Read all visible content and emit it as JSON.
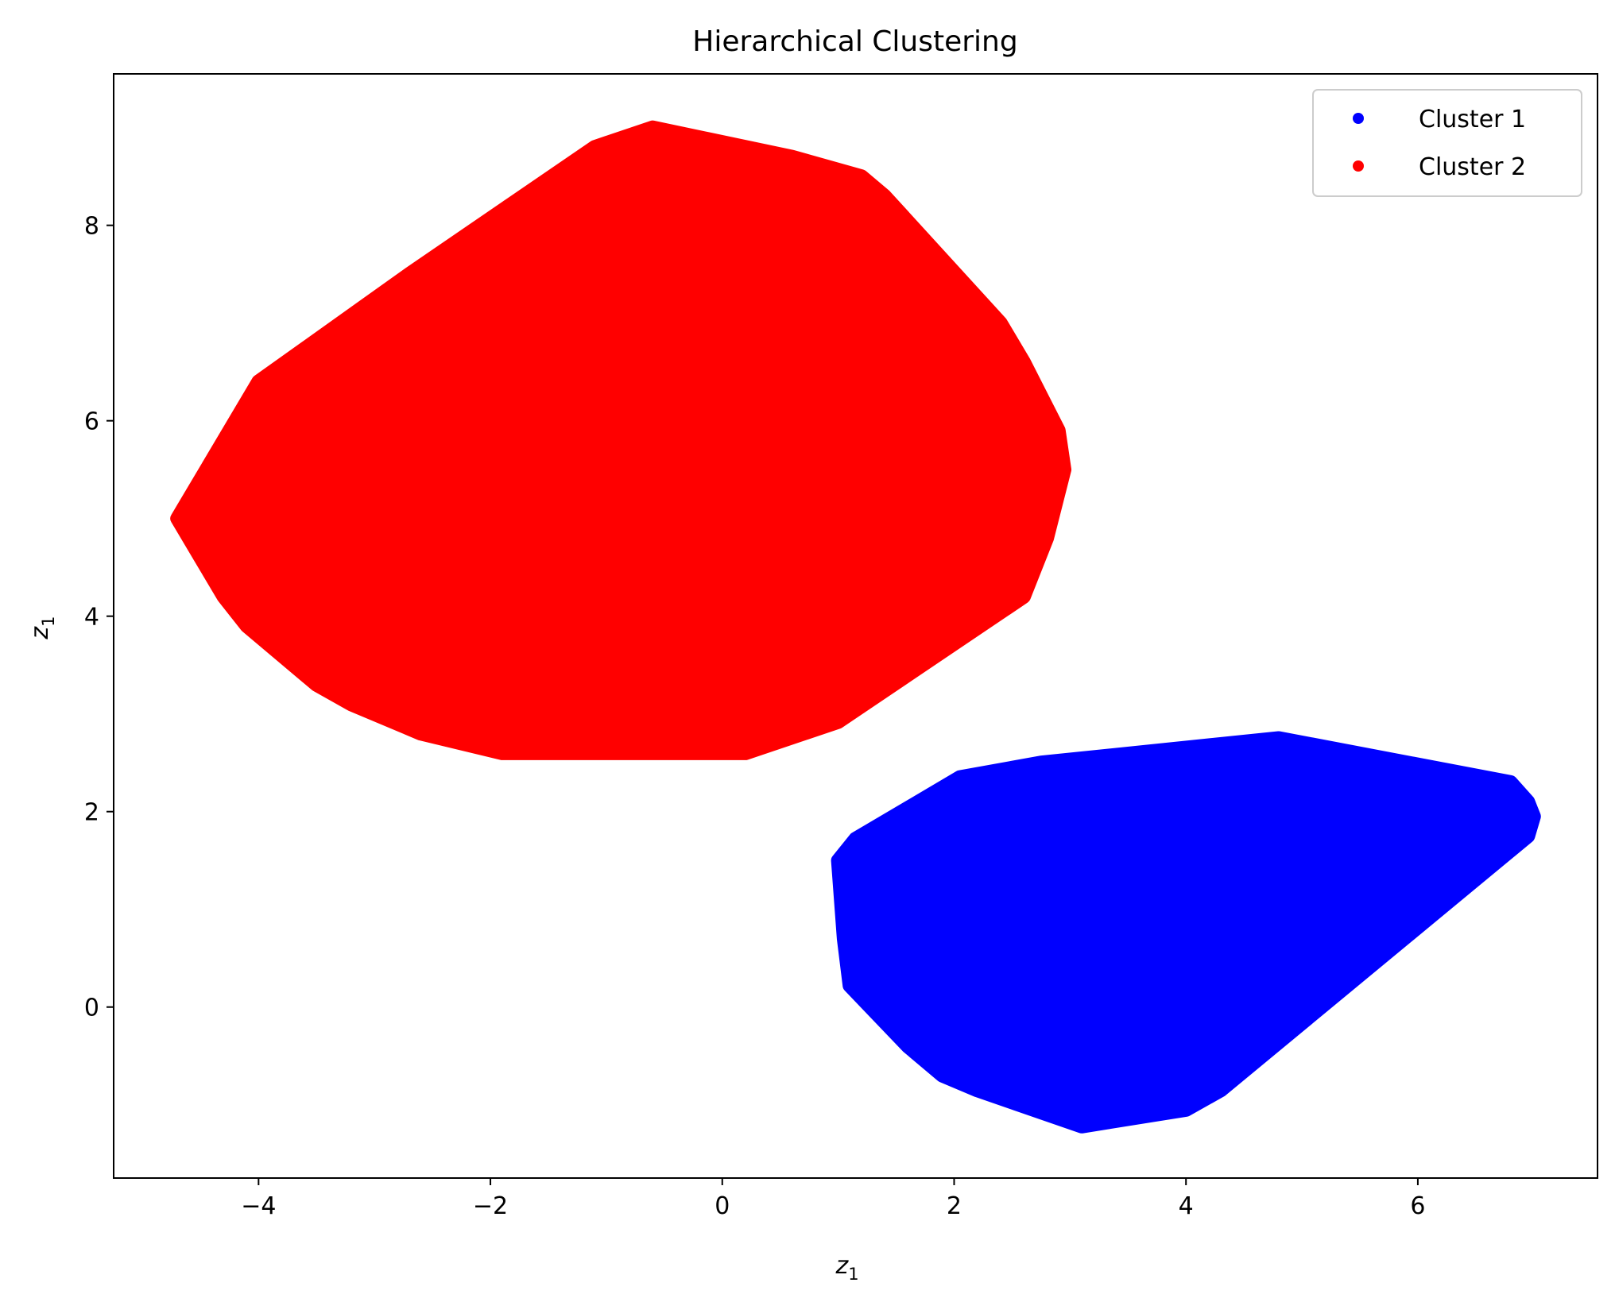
{
  "chart_data": {
    "type": "scatter",
    "title": "Hierarchical Clustering",
    "xlabel": "z",
    "xlabel_subscript": "1",
    "ylabel": "z",
    "ylabel_subscript": "1",
    "xlim": [
      -5.25,
      7.55
    ],
    "ylim": [
      -1.75,
      9.55
    ],
    "xticks": [
      -4,
      -2,
      0,
      2,
      4,
      6
    ],
    "xtick_labels": [
      "−4",
      "−2",
      "0",
      "2",
      "4",
      "6"
    ],
    "yticks": [
      0,
      2,
      4,
      6,
      8
    ],
    "ytick_labels": [
      "0",
      "2",
      "4",
      "6",
      "8"
    ],
    "grid": false,
    "legend_position": "top-right",
    "series": [
      {
        "name": "Cluster 1",
        "color": "#0000ff",
        "points": [
          [
            1.0,
            1.5
          ],
          [
            1.15,
            1.72
          ],
          [
            1.3,
            1.45
          ],
          [
            1.05,
            0.7
          ],
          [
            1.1,
            0.22
          ],
          [
            1.45,
            0.9
          ],
          [
            1.8,
            1.5
          ],
          [
            2.0,
            1.2
          ],
          [
            2.05,
            2.35
          ],
          [
            2.3,
            2.4
          ],
          [
            2.6,
            2.45
          ],
          [
            2.75,
            2.5
          ],
          [
            3.0,
            2.2
          ],
          [
            3.2,
            2.4
          ],
          [
            3.35,
            2.48
          ],
          [
            3.5,
            2.3
          ],
          [
            3.8,
            2.0
          ],
          [
            4.0,
            1.8
          ],
          [
            4.2,
            2.05
          ],
          [
            4.4,
            1.6
          ],
          [
            4.6,
            2.15
          ],
          [
            4.7,
            2.6
          ],
          [
            4.8,
            2.75
          ],
          [
            5.0,
            2.4
          ],
          [
            5.3,
            2.45
          ],
          [
            5.6,
            2.5
          ],
          [
            5.9,
            2.4
          ],
          [
            6.2,
            2.35
          ],
          [
            6.5,
            2.3
          ],
          [
            6.8,
            2.3
          ],
          [
            6.95,
            2.1
          ],
          [
            7.0,
            1.95
          ],
          [
            6.95,
            1.75
          ],
          [
            6.6,
            1.5
          ],
          [
            6.3,
            1.2
          ],
          [
            6.0,
            0.95
          ],
          [
            5.7,
            0.75
          ],
          [
            5.4,
            0.55
          ],
          [
            5.3,
            0.25
          ],
          [
            5.1,
            0.3
          ],
          [
            4.9,
            0.6
          ],
          [
            4.65,
            0.2
          ],
          [
            4.55,
            -0.2
          ],
          [
            4.5,
            -0.6
          ],
          [
            4.3,
            -0.85
          ],
          [
            4.0,
            -1.05
          ],
          [
            3.7,
            -1.1
          ],
          [
            3.4,
            -1.12
          ],
          [
            3.1,
            -1.22
          ],
          [
            2.8,
            -1.05
          ],
          [
            2.5,
            -0.95
          ],
          [
            2.2,
            -0.85
          ],
          [
            1.9,
            -0.7
          ],
          [
            1.6,
            -0.4
          ],
          [
            1.4,
            -0.05
          ],
          [
            1.25,
            0.4
          ],
          [
            1.6,
            0.5
          ],
          [
            2.0,
            0.3
          ],
          [
            2.4,
            0.8
          ],
          [
            2.8,
            1.0
          ],
          [
            3.2,
            0.6
          ],
          [
            3.6,
            0.2
          ],
          [
            4.0,
            0.4
          ],
          [
            4.3,
            0.0
          ],
          [
            2.6,
            -0.3
          ],
          [
            3.0,
            -0.5
          ],
          [
            3.4,
            -0.3
          ],
          [
            3.8,
            -0.6
          ],
          [
            2.2,
            0.0
          ],
          [
            1.8,
            0.1
          ],
          [
            3.3,
            1.5
          ],
          [
            2.9,
            1.8
          ],
          [
            3.6,
            1.2
          ],
          [
            4.1,
            1.1
          ],
          [
            5.6,
            1.6
          ],
          [
            6.1,
            1.8
          ],
          [
            6.5,
            1.9
          ],
          [
            5.8,
            2.1
          ],
          [
            5.2,
            1.9
          ],
          [
            5.5,
            1.1
          ],
          [
            6.2,
            1.5
          ],
          [
            4.9,
            1.4
          ],
          [
            3.9,
            -0.9
          ],
          [
            2.4,
            -0.6
          ],
          [
            1.7,
            0.9
          ],
          [
            2.7,
            0.2
          ],
          [
            3.5,
            0.9
          ],
          [
            4.2,
            0.7
          ]
        ]
      },
      {
        "name": "Cluster 2",
        "color": "#ff0000",
        "points": [
          [
            -4.7,
            5.0
          ],
          [
            -4.6,
            5.2
          ],
          [
            -4.5,
            4.6
          ],
          [
            -4.4,
            5.5
          ],
          [
            -4.3,
            4.2
          ],
          [
            -4.2,
            6.0
          ],
          [
            -4.1,
            3.9
          ],
          [
            -4.0,
            6.4
          ],
          [
            -3.8,
            3.6
          ],
          [
            -3.7,
            6.6
          ],
          [
            -3.5,
            3.3
          ],
          [
            -3.3,
            6.9
          ],
          [
            -3.2,
            3.1
          ],
          [
            -3.0,
            7.2
          ],
          [
            -2.9,
            2.95
          ],
          [
            -2.7,
            7.5
          ],
          [
            -2.6,
            2.8
          ],
          [
            -2.4,
            7.7
          ],
          [
            -2.2,
            2.72
          ],
          [
            -2.0,
            7.85
          ],
          [
            -1.9,
            2.6
          ],
          [
            -1.7,
            7.9
          ],
          [
            -1.5,
            2.65
          ],
          [
            -1.4,
            8.1
          ],
          [
            -1.2,
            2.68
          ],
          [
            -1.3,
            8.5
          ],
          [
            -1.1,
            8.8
          ],
          [
            -0.9,
            8.85
          ],
          [
            -0.7,
            8.95
          ],
          [
            -0.6,
            9.0
          ],
          [
            -0.5,
            2.9
          ],
          [
            -0.3,
            8.85
          ],
          [
            -0.1,
            3.0
          ],
          [
            0.0,
            8.8
          ],
          [
            0.2,
            2.6
          ],
          [
            0.3,
            8.75
          ],
          [
            0.5,
            2.9
          ],
          [
            0.6,
            8.7
          ],
          [
            0.8,
            3.0
          ],
          [
            1.0,
            8.55
          ],
          [
            1.0,
            2.92
          ],
          [
            1.2,
            8.5
          ],
          [
            1.3,
            3.6
          ],
          [
            1.4,
            8.3
          ],
          [
            1.5,
            3.9
          ],
          [
            1.6,
            7.8
          ],
          [
            1.8,
            7.3
          ],
          [
            1.9,
            4.1
          ],
          [
            2.0,
            7.1
          ],
          [
            2.1,
            4.05
          ],
          [
            2.2,
            6.7
          ],
          [
            2.3,
            4.4
          ],
          [
            2.5,
            6.4
          ],
          [
            2.6,
            4.2
          ],
          [
            2.7,
            6.3
          ],
          [
            2.8,
            4.8
          ],
          [
            2.9,
            5.9
          ],
          [
            2.95,
            5.5
          ],
          [
            2.4,
            7.0
          ],
          [
            2.6,
            6.6
          ],
          [
            -3.5,
            4.5
          ],
          [
            -3.0,
            5.5
          ],
          [
            -2.5,
            6.0
          ],
          [
            -2.0,
            5.0
          ],
          [
            -1.5,
            6.5
          ],
          [
            -1.0,
            4.0
          ],
          [
            -0.5,
            5.5
          ],
          [
            0.0,
            6.0
          ],
          [
            0.5,
            5.0
          ],
          [
            1.0,
            6.5
          ],
          [
            1.5,
            5.5
          ],
          [
            2.0,
            5.0
          ],
          [
            -2.8,
            4.0
          ],
          [
            -1.8,
            3.5
          ],
          [
            -0.8,
            7.0
          ],
          [
            0.2,
            7.5
          ],
          [
            1.2,
            7.0
          ],
          [
            2.2,
            5.8
          ],
          [
            -3.8,
            5.2
          ],
          [
            -3.2,
            4.2
          ],
          [
            -2.2,
            6.8
          ],
          [
            -1.2,
            7.8
          ],
          [
            -0.2,
            3.8
          ],
          [
            0.8,
            4.2
          ],
          [
            1.8,
            6.2
          ],
          [
            -1.0,
            5.2
          ],
          [
            0.6,
            6.8
          ],
          [
            -2.4,
            3.3
          ]
        ]
      }
    ]
  }
}
